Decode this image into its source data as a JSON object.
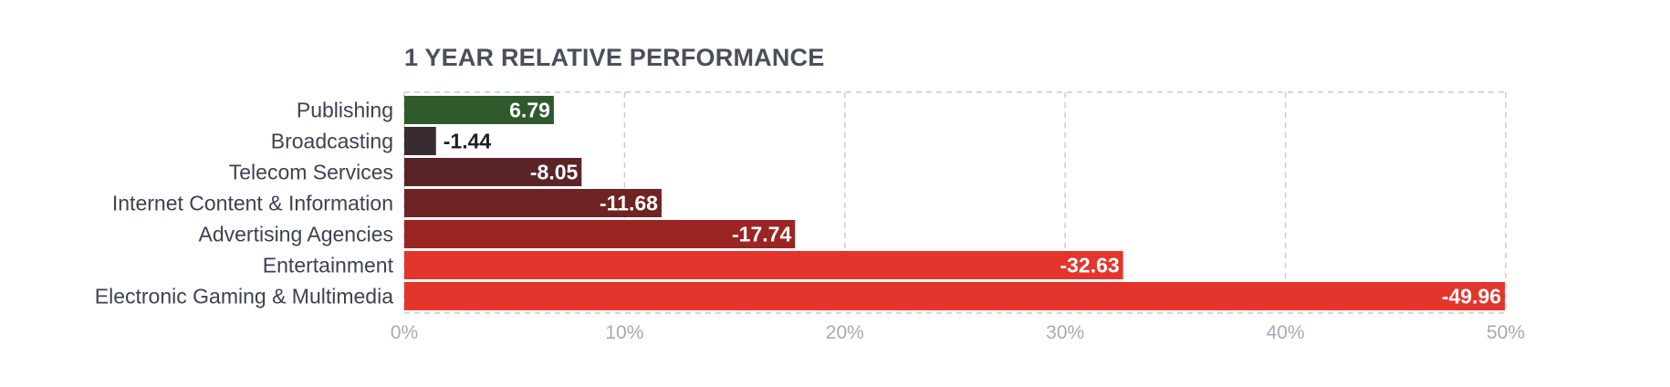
{
  "chart_data": {
    "type": "bar",
    "orientation": "horizontal",
    "title": "1 YEAR RELATIVE PERFORMANCE",
    "categories": [
      "Publishing",
      "Broadcasting",
      "Telecom Services",
      "Internet Content & Information",
      "Advertising Agencies",
      "Entertainment",
      "Electronic Gaming & Multimedia"
    ],
    "values": [
      6.79,
      -1.44,
      -8.05,
      -11.68,
      -17.74,
      -32.63,
      -49.96
    ],
    "value_labels": [
      "6.79",
      "-1.44",
      "-8.05",
      "-11.68",
      "-17.74",
      "-32.63",
      "-49.96"
    ],
    "bar_colors": [
      "#2f5a2c",
      "#382c30",
      "#5a2427",
      "#6e2325",
      "#9b2522",
      "#e3352b",
      "#e3352b"
    ],
    "xlim": [
      0,
      50
    ],
    "xticks": [
      0,
      10,
      20,
      30,
      40,
      50
    ],
    "xtick_labels": [
      "0%",
      "10%",
      "20%",
      "30%",
      "40%",
      "50%"
    ],
    "bar_length": "absolute value",
    "grid": true,
    "grid_style": "dashed",
    "legend": "none"
  }
}
